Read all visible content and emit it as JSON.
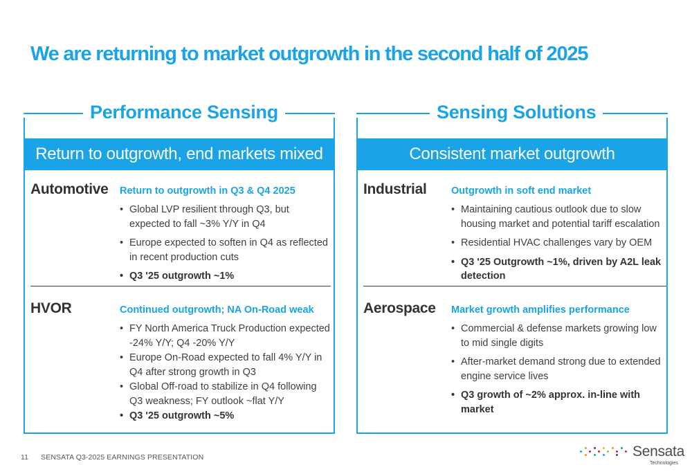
{
  "slide": {
    "title": "We are returning to market outgrowth in the second half of 2025",
    "page_number": "11",
    "footer_text": "SENSATA  Q3-2025 EARNINGS PRESENTATION"
  },
  "left_panel": {
    "title": "Performance Sensing",
    "banner": "Return to outgrowth, end markets mixed",
    "segments": [
      {
        "name": "Automotive",
        "subtitle": "Return to outgrowth in Q3 & Q4 2025",
        "bullets": [
          "Global LVP resilient through Q3, but expected to fall ~3% Y/Y in Q4",
          "Europe expected to soften in Q4 as reflected in recent production cuts",
          "Q3 '25 outgrowth ~1%"
        ]
      },
      {
        "name": "HVOR",
        "subtitle": "Continued outgrowth; NA On-Road weak",
        "bullets": [
          "FY North America Truck Production expected -24% Y/Y; Q4 -20% Y/Y",
          "Europe On-Road expected to fall 4% Y/Y in Q4 after strong growth in Q3",
          "Global Off-road to stabilize in Q4 following Q3 weakness; FY outlook ~flat Y/Y",
          "Q3 '25 outgrowth ~5%"
        ]
      }
    ]
  },
  "right_panel": {
    "title": "Sensing Solutions",
    "banner": "Consistent market outgrowth",
    "segments": [
      {
        "name": "Industrial",
        "subtitle": "Outgrowth in soft end market",
        "bullets": [
          "Maintaining cautious outlook due to slow housing market and potential tariff escalation",
          "Residential HVAC challenges vary by OEM",
          "Q3 '25 Outgrowth ~1%, driven by A2L leak detection"
        ]
      },
      {
        "name": "Aerospace",
        "subtitle": "Market growth amplifies performance",
        "bullets": [
          "Commercial & defense markets growing low to mid single digits",
          "After-market demand strong due to extended engine service lives",
          "Q3 growth of ~2% approx. in-line with market"
        ]
      }
    ]
  },
  "logo": {
    "wordmark": "Sensata",
    "tagline": "Technologies"
  },
  "colors": {
    "accent": "#1aa3e6",
    "text": "#333333",
    "logo_dots": [
      "#1aa3e6",
      "#8cc63f",
      "#f7941d",
      "#ec008c",
      "#662d91",
      "#00a99d",
      "#ed1c24",
      "#fbb040"
    ]
  }
}
